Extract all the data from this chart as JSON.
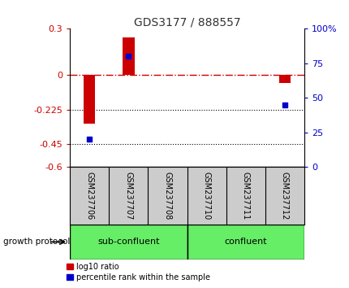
{
  "title": "GDS3177 / 888557",
  "categories": [
    "GSM237706",
    "GSM237707",
    "GSM237708",
    "GSM237710",
    "GSM237711",
    "GSM237712"
  ],
  "log10_ratio": [
    -0.32,
    0.245,
    0.0,
    0.0,
    0.0,
    -0.055
  ],
  "percentile_rank": [
    20,
    80,
    null,
    null,
    null,
    45
  ],
  "ylim_left": [
    -0.6,
    0.3
  ],
  "ylim_right": [
    0,
    100
  ],
  "yticks_left": [
    0.3,
    0,
    -0.225,
    -0.45,
    -0.6
  ],
  "yticks_right": [
    100,
    75,
    50,
    25,
    0
  ],
  "hlines_dotted": [
    -0.225,
    -0.45
  ],
  "hline_dash_dot": 0.0,
  "bar_color": "#cc0000",
  "dot_color": "#0000cc",
  "sub_confluent_indices": [
    0,
    1,
    2
  ],
  "confluent_indices": [
    3,
    4,
    5
  ],
  "sub_confluent_label": "sub-confluent",
  "confluent_label": "confluent",
  "growth_protocol_label": "growth protocol",
  "legend_red": "log10 ratio",
  "legend_blue": "percentile rank within the sample",
  "bg_color": "#cccccc",
  "green_color": "#66ee66",
  "title_color": "#333333",
  "bar_width": 0.3
}
